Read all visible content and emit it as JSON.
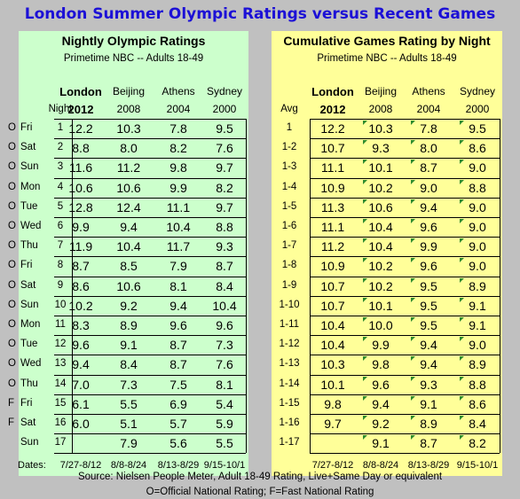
{
  "title": "London Summer Olympic Ratings versus Recent Games",
  "chart_data": {
    "type": "table",
    "left": {
      "title": "Nightly Olympic Ratings",
      "subtitle": "Primetime NBC -- Adults 18-49",
      "columns": [
        {
          "line1": "London",
          "line2": "2012",
          "bold": true
        },
        {
          "line1": "Beijing",
          "line2": "2008",
          "bold": false
        },
        {
          "line1": "Athens",
          "line2": "2004",
          "bold": false
        },
        {
          "line1": "Sydney",
          "line2": "2000",
          "bold": false
        }
      ],
      "row_header": "Night",
      "rows": [
        {
          "flag": "O",
          "day": "Fri",
          "label": "1",
          "values": [
            "12.2",
            "10.3",
            "7.8",
            "9.5"
          ]
        },
        {
          "flag": "O",
          "day": "Sat",
          "label": "2",
          "values": [
            "8.8",
            "8.0",
            "8.2",
            "7.6"
          ]
        },
        {
          "flag": "O",
          "day": "Sun",
          "label": "3",
          "values": [
            "11.6",
            "11.2",
            "9.8",
            "9.7"
          ]
        },
        {
          "flag": "O",
          "day": "Mon",
          "label": "4",
          "values": [
            "10.6",
            "10.6",
            "9.9",
            "8.2"
          ]
        },
        {
          "flag": "O",
          "day": "Tue",
          "label": "5",
          "values": [
            "12.8",
            "12.4",
            "11.1",
            "9.7"
          ]
        },
        {
          "flag": "O",
          "day": "Wed",
          "label": "6",
          "values": [
            "9.9",
            "9.4",
            "10.4",
            "8.8"
          ]
        },
        {
          "flag": "O",
          "day": "Thu",
          "label": "7",
          "values": [
            "11.9",
            "10.4",
            "11.7",
            "9.3"
          ]
        },
        {
          "flag": "O",
          "day": "Fri",
          "label": "8",
          "values": [
            "8.7",
            "8.5",
            "7.9",
            "8.7"
          ]
        },
        {
          "flag": "O",
          "day": "Sat",
          "label": "9",
          "values": [
            "8.6",
            "10.6",
            "8.1",
            "8.4"
          ]
        },
        {
          "flag": "O",
          "day": "Sun",
          "label": "10",
          "values": [
            "10.2",
            "9.2",
            "9.4",
            "10.4"
          ]
        },
        {
          "flag": "O",
          "day": "Mon",
          "label": "11",
          "values": [
            "8.3",
            "8.9",
            "9.6",
            "9.6"
          ]
        },
        {
          "flag": "O",
          "day": "Tue",
          "label": "12",
          "values": [
            "9.6",
            "9.1",
            "8.7",
            "7.3"
          ]
        },
        {
          "flag": "O",
          "day": "Wed",
          "label": "13",
          "values": [
            "9.4",
            "8.4",
            "8.7",
            "7.6"
          ]
        },
        {
          "flag": "O",
          "day": "Thu",
          "label": "14",
          "values": [
            "7.0",
            "7.3",
            "7.5",
            "8.1"
          ]
        },
        {
          "flag": "F",
          "day": "Fri",
          "label": "15",
          "values": [
            "6.1",
            "5.5",
            "6.9",
            "5.4"
          ]
        },
        {
          "flag": "F",
          "day": "Sat",
          "label": "16",
          "values": [
            "6.0",
            "5.1",
            "5.7",
            "5.9"
          ]
        },
        {
          "flag": "",
          "day": "Sun",
          "label": "17",
          "values": [
            "",
            "7.9",
            "5.6",
            "5.5"
          ]
        }
      ],
      "dates_label": "Dates:",
      "dates": [
        "7/27-8/12",
        "8/8-8/24",
        "8/13-8/29",
        "9/15-10/1"
      ]
    },
    "right": {
      "title": "Cumulative Games Rating by Night",
      "subtitle": "Primetime NBC -- Adults 18-49",
      "columns": [
        {
          "line1": "London",
          "line2": "2012",
          "bold": true
        },
        {
          "line1": "Beijing",
          "line2": "2008",
          "bold": false
        },
        {
          "line1": "Athens",
          "line2": "2004",
          "bold": false
        },
        {
          "line1": "Sydney",
          "line2": "2000",
          "bold": false
        }
      ],
      "row_header": "Avg",
      "rows": [
        {
          "label": "1",
          "values": [
            "12.2",
            "10.3",
            "7.8",
            "9.5"
          ]
        },
        {
          "label": "1-2",
          "values": [
            "10.7",
            "9.3",
            "8.0",
            "8.6"
          ]
        },
        {
          "label": "1-3",
          "values": [
            "11.1",
            "10.1",
            "8.7",
            "9.0"
          ]
        },
        {
          "label": "1-4",
          "values": [
            "10.9",
            "10.2",
            "9.0",
            "8.8"
          ]
        },
        {
          "label": "1-5",
          "values": [
            "11.3",
            "10.6",
            "9.4",
            "9.0"
          ]
        },
        {
          "label": "1-6",
          "values": [
            "11.1",
            "10.4",
            "9.6",
            "9.0"
          ]
        },
        {
          "label": "1-7",
          "values": [
            "11.2",
            "10.4",
            "9.9",
            "9.0"
          ]
        },
        {
          "label": "1-8",
          "values": [
            "10.9",
            "10.2",
            "9.6",
            "9.0"
          ]
        },
        {
          "label": "1-9",
          "values": [
            "10.7",
            "10.2",
            "9.5",
            "8.9"
          ]
        },
        {
          "label": "1-10",
          "values": [
            "10.7",
            "10.1",
            "9.5",
            "9.1"
          ]
        },
        {
          "label": "1-11",
          "values": [
            "10.4",
            "10.0",
            "9.5",
            "9.1"
          ]
        },
        {
          "label": "1-12",
          "values": [
            "10.4",
            "9.9",
            "9.4",
            "9.0"
          ]
        },
        {
          "label": "1-13",
          "values": [
            "10.3",
            "9.8",
            "9.4",
            "8.9"
          ]
        },
        {
          "label": "1-14",
          "values": [
            "10.1",
            "9.6",
            "9.3",
            "8.8"
          ]
        },
        {
          "label": "1-15",
          "values": [
            "9.8",
            "9.4",
            "9.1",
            "8.6"
          ]
        },
        {
          "label": "1-16",
          "values": [
            "9.7",
            "9.2",
            "8.9",
            "8.4"
          ]
        },
        {
          "label": "1-17",
          "values": [
            "",
            "9.1",
            "8.7",
            "8.2"
          ]
        }
      ],
      "dates": [
        "7/27-8/12",
        "8/8-8/24",
        "8/13-8/29",
        "9/15-10/1"
      ]
    }
  },
  "footer": {
    "source": "Source: Nielsen People Meter, Adult 18-49 Rating, Live+Same Day or equivalent",
    "legend": "O=Official National Rating; F=Fast National Rating"
  },
  "colors": {
    "title": "#1c10d6",
    "left_panel": "#ccffcc",
    "right_panel": "#ffff99",
    "background": "#c0c0c0"
  }
}
